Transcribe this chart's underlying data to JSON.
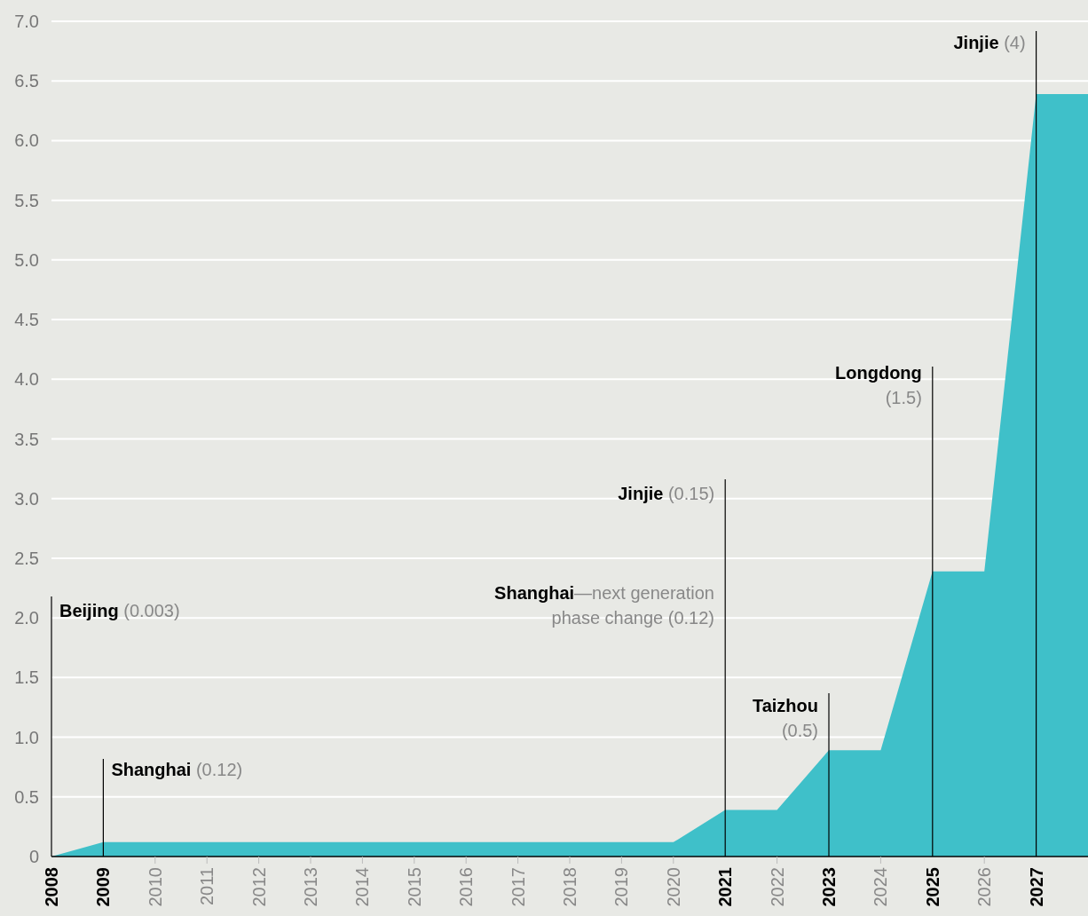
{
  "chart_data": {
    "type": "area",
    "x": [
      2008,
      2009,
      2020,
      2021,
      2022,
      2023,
      2024,
      2025,
      2026,
      2027,
      2028
    ],
    "series": [
      {
        "color": "#3fc0c9",
        "values": [
          0,
          0.12,
          0.12,
          0.39,
          0.39,
          0.89,
          0.89,
          2.39,
          2.39,
          6.39,
          6.39
        ]
      }
    ],
    "xlim": [
      2008,
      2028
    ],
    "xticks": [
      2008,
      2009,
      2010,
      2011,
      2012,
      2013,
      2014,
      2015,
      2016,
      2017,
      2018,
      2019,
      2020,
      2021,
      2022,
      2023,
      2024,
      2025,
      2026,
      2027
    ],
    "ylim": [
      0,
      7
    ],
    "yticks": [
      {
        "value": 0,
        "label": "0"
      },
      {
        "value": 0.5,
        "label": "0.5"
      },
      {
        "value": 1,
        "label": "1.0"
      },
      {
        "value": 1.5,
        "label": "1.5"
      },
      {
        "value": 2,
        "label": "2.0"
      },
      {
        "value": 2.5,
        "label": "2.5"
      },
      {
        "value": 3,
        "label": "3.0"
      },
      {
        "value": 3.5,
        "label": "3.5"
      },
      {
        "value": 4,
        "label": "4.0"
      },
      {
        "value": 4.5,
        "label": "4.5"
      },
      {
        "value": 5,
        "label": "5.0"
      },
      {
        "value": 5.5,
        "label": "5.5"
      },
      {
        "value": 6,
        "label": "6.0"
      },
      {
        "value": 6.5,
        "label": "6.5"
      },
      {
        "value": 7,
        "label": "7.0"
      }
    ],
    "grid": "y",
    "ref_lines": [
      {
        "axis": "x",
        "value": 2008,
        "label": "Beijing (0.003)",
        "color": "#000000"
      },
      {
        "axis": "x",
        "value": 2009,
        "label": "Shanghai (0.12)",
        "color": "#000000"
      },
      {
        "axis": "x",
        "value": 2021,
        "label": "Jinjie (0.15)",
        "color": "#000000"
      },
      {
        "axis": "x",
        "value": 2023,
        "label": "Taizhou (0.5)",
        "color": "#000000"
      },
      {
        "axis": "x",
        "value": 2025,
        "label": "Longdong (1.5)",
        "color": "#000000"
      },
      {
        "axis": "x",
        "value": 2027,
        "label": "Jinjie (4)",
        "color": "#000000"
      }
    ],
    "annotations": [
      "Shanghai—next generation phase change (0.12)"
    ]
  }
}
